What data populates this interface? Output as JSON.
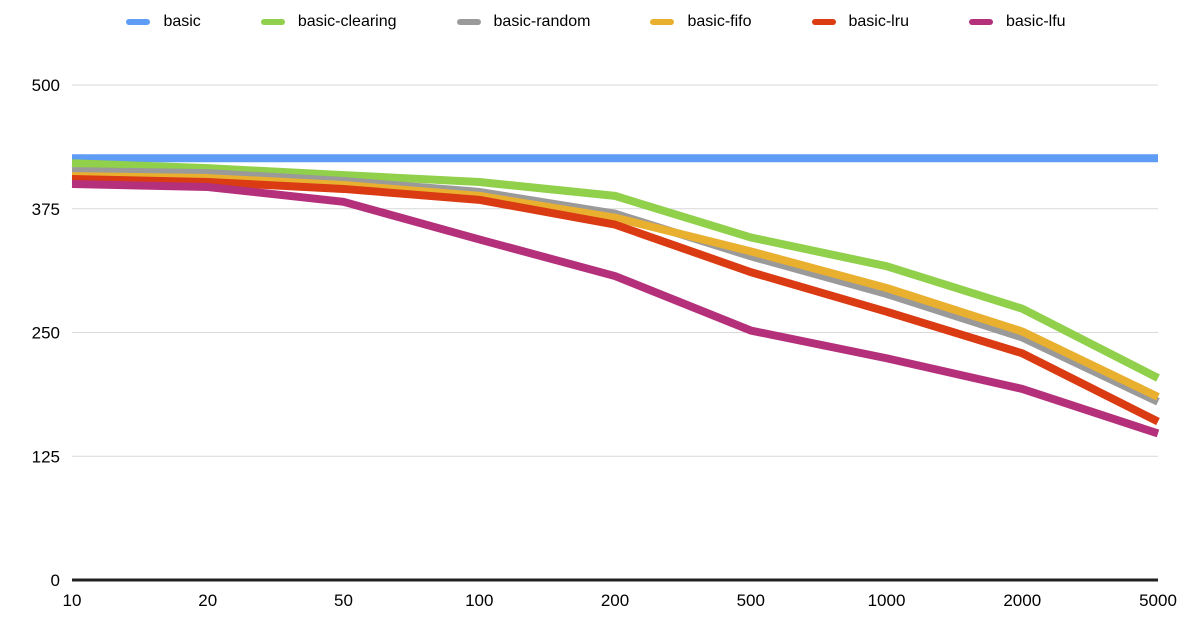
{
  "chart_data": {
    "type": "line",
    "title": "",
    "xlabel": "",
    "ylabel": "",
    "x_categories": [
      "10",
      "20",
      "50",
      "100",
      "200",
      "500",
      "1000",
      "2000",
      "5000"
    ],
    "y_ticks": [
      0,
      125,
      250,
      375,
      500
    ],
    "ylim": [
      0,
      500
    ],
    "grid": "horizontal",
    "legend_position": "top",
    "background_color": "#ffffff",
    "gridline_color": "#d9d9d9",
    "baseline_color": "#212121",
    "tick_label_color": "#000000",
    "series": [
      {
        "name": "basic",
        "color": "#5e9cf5",
        "values": [
          426,
          426,
          426,
          426,
          426,
          426,
          426,
          426,
          426
        ]
      },
      {
        "name": "basic-clearing",
        "color": "#90d04a",
        "values": [
          421,
          416,
          409,
          402,
          388,
          346,
          317,
          274,
          204
        ]
      },
      {
        "name": "basic-random",
        "color": "#9a9a9a",
        "values": [
          413,
          411,
          403,
          392,
          370,
          327,
          289,
          245,
          180
        ]
      },
      {
        "name": "basic-fifo",
        "color": "#e9b030",
        "values": [
          408,
          406,
          399,
          388,
          366,
          332,
          295,
          251,
          185
        ]
      },
      {
        "name": "basic-lru",
        "color": "#da3b13",
        "values": [
          405,
          402,
          395,
          384,
          359,
          311,
          271,
          229,
          160
        ]
      },
      {
        "name": "basic-lfu",
        "color": "#b5307a",
        "values": [
          400,
          397,
          382,
          344,
          307,
          252,
          224,
          193,
          148
        ]
      }
    ]
  }
}
